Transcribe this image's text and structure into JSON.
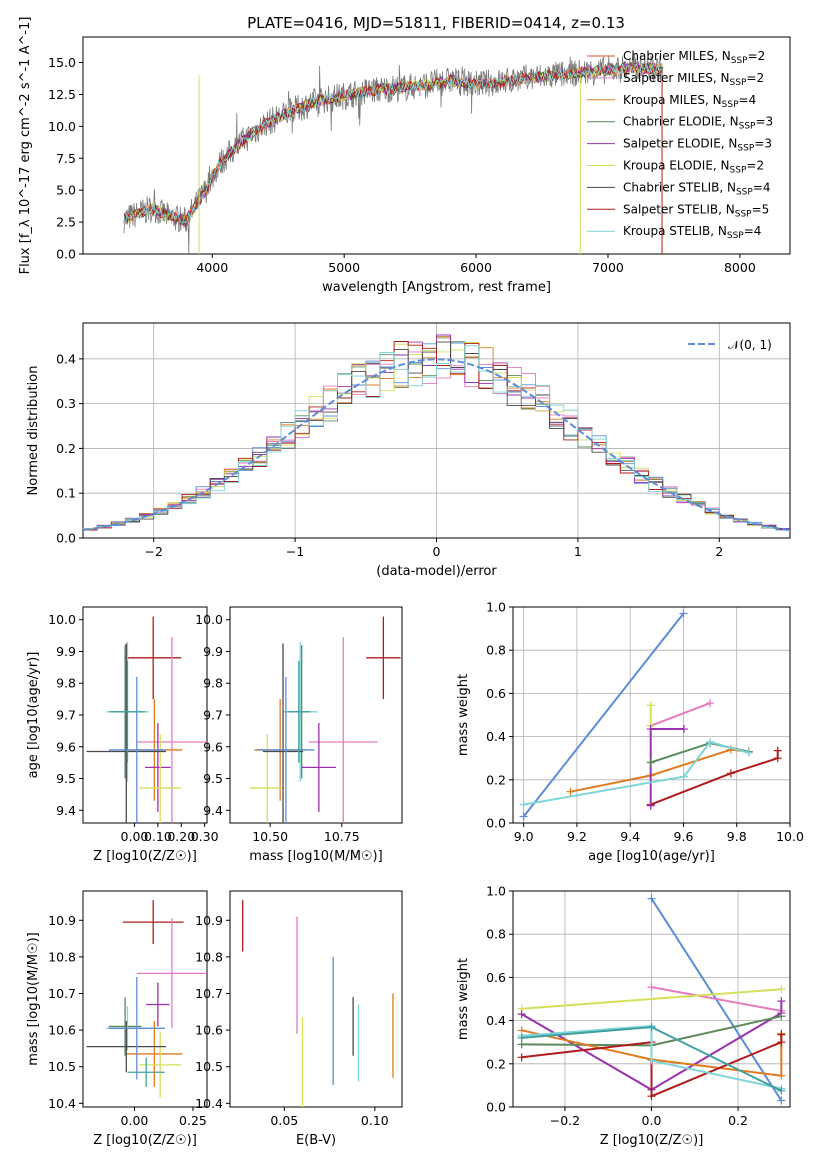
{
  "colors": [
    "#d94f2b",
    "#e47bc0",
    "#e07b1f",
    "#5b8a5b",
    "#9b30b0",
    "#d4e05a",
    "#4a4a4a",
    "#b01c1c",
    "#7fd4d8",
    "#5b8dd9",
    "#3fa0a0"
  ],
  "figure": {
    "title": "PLATE=0416, MJD=51811, FIBERID=0414, z=0.13"
  },
  "chart_data": [
    {
      "id": "spectrum",
      "type": "line",
      "title": "PLATE=0416, MJD=51811, FIBERID=0414, z=0.13",
      "xlabel": "wavelength [Angstrom, rest frame]",
      "ylabel": "Flux [f_λ 10^-17 erg cm^-2 s^-1 A^-1]",
      "xlim": [
        3020,
        8380
      ],
      "ylim": [
        0,
        17
      ],
      "xticks": [
        4000,
        5000,
        6000,
        7000,
        8000
      ],
      "yticks": [
        0.0,
        2.5,
        5.0,
        7.5,
        10.0,
        12.5,
        15.0
      ],
      "legend_position": "top-right",
      "legend": [
        "Chabrier MILES, N_SSP=2",
        "Salpeter MILES, N_SSP=2",
        "Kroupa MILES, N_SSP=4",
        "Chabrier ELODIE, N_SSP=3",
        "Salpeter ELODIE, N_SSP=3",
        "Kroupa ELODIE, N_SSP=2",
        "Chabrier STELIB, N_SSP=4",
        "Salpeter STELIB, N_SSP=5",
        "Kroupa STELIB, N_SSP=4"
      ],
      "legend_color_index": [
        0,
        1,
        2,
        3,
        4,
        5,
        6,
        7,
        8
      ],
      "series_anchor": {
        "x": [
          3350,
          3450,
          3550,
          3650,
          3800,
          3950,
          4050,
          4200,
          4400,
          4600,
          4800,
          5000,
          5200,
          5400,
          5600,
          5800,
          6000,
          6200,
          6400,
          6600,
          6800,
          7000,
          7200,
          7400
        ],
        "y": [
          2.8,
          3.2,
          3.6,
          3.0,
          2.6,
          5.0,
          7.0,
          8.6,
          10.2,
          11.2,
          12.0,
          12.4,
          12.8,
          13.0,
          13.2,
          13.6,
          13.3,
          13.5,
          13.8,
          14.0,
          14.2,
          14.4,
          14.6,
          14.5
        ]
      }
    },
    {
      "id": "residuals",
      "type": "line",
      "xlabel": "(data-model)/error",
      "ylabel": "Normed distribution",
      "xlim": [
        -2.5,
        2.5
      ],
      "ylim": [
        0,
        0.48
      ],
      "xticks": [
        -2,
        -1,
        0,
        1,
        2
      ],
      "yticks": [
        0.0,
        0.1,
        0.2,
        0.3,
        0.4
      ],
      "legend": [
        "N(0,1)"
      ],
      "legend_position": "top-right",
      "series": [
        {
          "name": "N(0,1)",
          "function": "normal_pdf",
          "mean": 0,
          "sigma": 1,
          "style": "dashed"
        }
      ]
    },
    {
      "id": "age_vs_Z",
      "type": "scatter",
      "xlabel": "Z [log10(Z/Z☉)]",
      "ylabel": "age  [log10(age/yr)]",
      "xlim": [
        -0.22,
        0.31
      ],
      "ylim": [
        9.36,
        10.04
      ],
      "xticks": [
        0.0,
        0.1,
        0.2,
        0.3
      ],
      "yticks": [
        9.4,
        9.5,
        9.6,
        9.7,
        9.8,
        9.9,
        10.0
      ],
      "points": [
        {
          "x": 0.08,
          "y": 9.88,
          "xerr": 0.12,
          "yerr": 0.13,
          "c": 7
        },
        {
          "x": 0.16,
          "y": 9.615,
          "xerr": 0.15,
          "yerr": 0.33,
          "c": 1
        },
        {
          "x": 0.085,
          "y": 9.59,
          "xerr": 0.12,
          "yerr": 0.16,
          "c": 2
        },
        {
          "x": -0.04,
          "y": 9.71,
          "xerr": 0.07,
          "yerr": 0.21,
          "c": 3
        },
        {
          "x": 0.1,
          "y": 9.535,
          "xerr": 0.055,
          "yerr": 0.14,
          "c": 4
        },
        {
          "x": 0.11,
          "y": 9.47,
          "xerr": 0.09,
          "yerr": 0.17,
          "c": 5
        },
        {
          "x": -0.03,
          "y": 9.71,
          "xerr": 0.09,
          "yerr": 0.22,
          "c": 8
        },
        {
          "x": -0.035,
          "y": 9.585,
          "xerr": 0.17,
          "yerr": 0.34,
          "c": 6
        },
        {
          "x": 0.01,
          "y": 9.59,
          "xerr": 0.12,
          "yerr": 0.23,
          "c": 9
        },
        {
          "x": -0.03,
          "y": 9.71,
          "xerr": 0.075,
          "yerr": 0.16,
          "c": 10
        }
      ]
    },
    {
      "id": "age_vs_mass",
      "type": "scatter",
      "xlabel": "mass [log10(M/M☉)]",
      "ylabel": "",
      "xlim": [
        10.36,
        10.96
      ],
      "ylim": [
        9.36,
        10.04
      ],
      "xticks": [
        10.5,
        10.75
      ],
      "yticks": [
        9.4,
        9.5,
        9.6,
        9.7,
        9.8,
        9.9,
        10.0
      ],
      "points": [
        {
          "x": 10.895,
          "y": 9.88,
          "xerr": 0.06,
          "yerr": 0.13,
          "c": 7
        },
        {
          "x": 10.755,
          "y": 9.615,
          "xerr": 0.12,
          "yerr": 0.33,
          "c": 1
        },
        {
          "x": 10.535,
          "y": 9.59,
          "xerr": 0.09,
          "yerr": 0.16,
          "c": 2
        },
        {
          "x": 10.61,
          "y": 9.71,
          "xerr": 0.04,
          "yerr": 0.21,
          "c": 3
        },
        {
          "x": 10.67,
          "y": 9.535,
          "xerr": 0.06,
          "yerr": 0.14,
          "c": 4
        },
        {
          "x": 10.49,
          "y": 9.47,
          "xerr": 0.06,
          "yerr": 0.17,
          "c": 5
        },
        {
          "x": 10.605,
          "y": 9.71,
          "xerr": 0.06,
          "yerr": 0.22,
          "c": 8
        },
        {
          "x": 10.545,
          "y": 9.585,
          "xerr": 0.07,
          "yerr": 0.34,
          "c": 6
        },
        {
          "x": 10.555,
          "y": 9.59,
          "xerr": 0.1,
          "yerr": 0.23,
          "c": 9
        },
        {
          "x": 10.6,
          "y": 9.71,
          "xerr": 0.04,
          "yerr": 0.16,
          "c": 10
        }
      ]
    },
    {
      "id": "weight_vs_age",
      "type": "line",
      "xlabel": "age  [log10(age/yr)]",
      "ylabel": "mass weight",
      "xlim": [
        8.96,
        10.0
      ],
      "ylim": [
        0,
        1.0
      ],
      "xticks": [
        9.0,
        9.2,
        9.4,
        9.6,
        9.8,
        10.0
      ],
      "yticks": [
        0.0,
        0.2,
        0.4,
        0.6,
        0.8,
        1.0
      ],
      "series": [
        {
          "c": 9,
          "x": [
            9.0,
            9.6
          ],
          "y": [
            0.03,
            0.97
          ]
        },
        {
          "c": 1,
          "x": [
            9.477,
            9.7
          ],
          "y": [
            0.45,
            0.555
          ]
        },
        {
          "c": 5,
          "x": [
            9.477,
            9.477
          ],
          "y": [
            0.45,
            0.545
          ]
        },
        {
          "c": 2,
          "x": [
            9.176,
            9.477,
            9.778,
            9.845
          ],
          "y": [
            0.145,
            0.22,
            0.34,
            0.33
          ]
        },
        {
          "c": 7,
          "x": [
            9.477,
            9.778,
            9.954,
            9.954
          ],
          "y": [
            0.085,
            0.23,
            0.3,
            0.335
          ]
        },
        {
          "c": 4,
          "x": [
            9.477,
            9.477,
            9.602
          ],
          "y": [
            0.08,
            0.435,
            0.435
          ]
        },
        {
          "c": 3,
          "x": [
            9.477,
            9.7,
            9.845
          ],
          "y": [
            0.28,
            0.37,
            0.33
          ]
        },
        {
          "c": 8,
          "x": [
            9.0,
            9.602,
            9.7,
            9.845
          ],
          "y": [
            0.085,
            0.215,
            0.375,
            0.325
          ]
        }
      ]
    },
    {
      "id": "mass_vs_Z",
      "type": "scatter",
      "xlabel": "Z [log10(Z/Z☉)]",
      "ylabel": "mass [log10(M/M☉)]",
      "xlim": [
        -0.22,
        0.31
      ],
      "ylim": [
        10.39,
        10.98
      ],
      "xticks": [
        0.0,
        0.25
      ],
      "yticks": [
        10.4,
        10.5,
        10.6,
        10.7,
        10.8,
        10.9
      ],
      "points": [
        {
          "x": 0.08,
          "y": 10.895,
          "xerr": 0.13,
          "yerr": 0.06,
          "c": 7
        },
        {
          "x": 0.16,
          "y": 10.755,
          "xerr": 0.15,
          "yerr": 0.15,
          "c": 1
        },
        {
          "x": 0.085,
          "y": 10.535,
          "xerr": 0.12,
          "yerr": 0.09,
          "c": 2
        },
        {
          "x": -0.04,
          "y": 10.61,
          "xerr": 0.07,
          "yerr": 0.08,
          "c": 3
        },
        {
          "x": 0.1,
          "y": 10.67,
          "xerr": 0.05,
          "yerr": 0.06,
          "c": 4
        },
        {
          "x": 0.11,
          "y": 10.505,
          "xerr": 0.09,
          "yerr": 0.09,
          "c": 5
        },
        {
          "x": -0.03,
          "y": 10.605,
          "xerr": 0.09,
          "yerr": 0.06,
          "c": 8
        },
        {
          "x": -0.035,
          "y": 10.555,
          "xerr": 0.17,
          "yerr": 0.07,
          "c": 6
        },
        {
          "x": 0.01,
          "y": 10.605,
          "xerr": 0.12,
          "yerr": 0.14,
          "c": 9
        },
        {
          "x": 0.05,
          "y": 10.485,
          "xerr": 0.08,
          "yerr": 0.04,
          "c": 10
        }
      ]
    },
    {
      "id": "mass_vs_ebv",
      "type": "scatter",
      "xlabel": "E(B-V)",
      "ylabel": "",
      "xlim": [
        0.02,
        0.115
      ],
      "ylim": [
        10.39,
        10.98
      ],
      "xticks": [
        0.05,
        0.1
      ],
      "yticks": [
        10.4,
        10.5,
        10.6,
        10.7,
        10.8,
        10.9
      ],
      "points": [
        {
          "x": 0.027,
          "y": 10.885,
          "xerr": 0,
          "yerr": 0.07,
          "c": 7
        },
        {
          "x": 0.057,
          "y": 10.75,
          "xerr": 0,
          "yerr": 0.16,
          "c": 1
        },
        {
          "x": 0.06,
          "y": 10.505,
          "xerr": 0,
          "yerr": 0.13,
          "c": 5
        },
        {
          "x": 0.077,
          "y": 10.625,
          "xerr": 0,
          "yerr": 0.175,
          "c": 9
        },
        {
          "x": 0.088,
          "y": 10.61,
          "xerr": 0,
          "yerr": 0.08,
          "c": 6
        },
        {
          "x": 0.091,
          "y": 10.565,
          "xerr": 0,
          "yerr": 0.105,
          "c": 8
        },
        {
          "x": 0.11,
          "y": 10.585,
          "xerr": 0,
          "yerr": 0.115,
          "c": 2
        }
      ]
    },
    {
      "id": "weight_vs_Z",
      "type": "line",
      "xlabel": "Z [log10(Z/Z☉)]",
      "ylabel": "mass weight",
      "xlim": [
        -0.32,
        0.32
      ],
      "ylim": [
        0,
        1.0
      ],
      "xticks": [
        -0.2,
        0.0,
        0.2
      ],
      "yticks": [
        0.0,
        0.2,
        0.4,
        0.6,
        0.8,
        1.0
      ],
      "series": [
        {
          "c": 9,
          "x": [
            0.0,
            0.3
          ],
          "y": [
            0.965,
            0.03
          ]
        },
        {
          "c": 1,
          "x": [
            0.0,
            0.3
          ],
          "y": [
            0.555,
            0.445
          ]
        },
        {
          "c": 5,
          "x": [
            -0.3,
            0.3
          ],
          "y": [
            0.455,
            0.545
          ]
        },
        {
          "c": 4,
          "x": [
            -0.3,
            0.0,
            0.3,
            0.3
          ],
          "y": [
            0.43,
            0.08,
            0.435,
            0.49
          ]
        },
        {
          "c": 3,
          "x": [
            -0.3,
            0.0,
            0.3
          ],
          "y": [
            0.29,
            0.285,
            0.42
          ]
        },
        {
          "c": 2,
          "x": [
            -0.3,
            0.0,
            0.3,
            0.3
          ],
          "y": [
            0.355,
            0.22,
            0.145,
            0.34
          ]
        },
        {
          "c": 7,
          "x": [
            -0.3,
            0.0,
            0.0,
            0.3,
            0.3
          ],
          "y": [
            0.23,
            0.3,
            0.05,
            0.3,
            0.335
          ]
        },
        {
          "c": 8,
          "x": [
            -0.3,
            0.0,
            0.0,
            0.3
          ],
          "y": [
            0.33,
            0.375,
            0.215,
            0.085
          ]
        },
        {
          "c": 10,
          "x": [
            -0.3,
            0.0,
            0.3
          ],
          "y": [
            0.32,
            0.37,
            0.075
          ]
        }
      ]
    }
  ]
}
